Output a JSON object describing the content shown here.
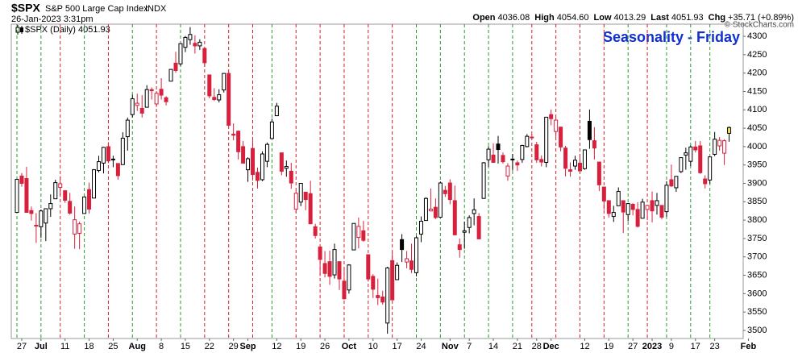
{
  "header": {
    "symbol": "$SPX",
    "name": "S&P 500 Large Cap Index",
    "exchange": "INDX",
    "datetime": "26-Jan-2023 3:31pm",
    "quote": [
      {
        "label": "Open",
        "value": "4036.08"
      },
      {
        "label": "High",
        "value": "4054.60"
      },
      {
        "label": "Low",
        "value": "4013.29"
      },
      {
        "label": "Last",
        "value": "4051.93"
      },
      {
        "label": "Chg",
        "value": "+35.71 (+0.89%)"
      }
    ],
    "copyright": "© StockCharts.com"
  },
  "chart_data": {
    "type": "candlestick",
    "legend": "$SPX (Daily) 4051.93",
    "annotation": "Seasonality - Friday",
    "annotation_color": "#1030d0",
    "up_color": "#000000",
    "down_color": "#d8203c",
    "last_color": "#f2e64a",
    "friday_up_color": "#2a9a2a",
    "friday_down_color": "#d42020",
    "ylim": [
      3478,
      4333
    ],
    "yticks": [
      3500,
      3550,
      3600,
      3650,
      3700,
      3750,
      3800,
      3850,
      3900,
      3950,
      4000,
      4050,
      4100,
      4150,
      4200,
      4250,
      4300
    ],
    "fridays": [
      0,
      5,
      9,
      14,
      19,
      24,
      29,
      34,
      39,
      44,
      49,
      53,
      58,
      63,
      68,
      73,
      78,
      83,
      88,
      93,
      98,
      103,
      107,
      112,
      117,
      122,
      127,
      131,
      135,
      140,
      144
    ],
    "categories": [
      null,
      "27",
      null,
      null,
      null,
      "Jul",
      null,
      null,
      null,
      null,
      "11",
      null,
      null,
      null,
      null,
      "18",
      null,
      null,
      null,
      null,
      "25",
      null,
      null,
      null,
      null,
      "Aug",
      null,
      null,
      null,
      null,
      "8",
      null,
      null,
      null,
      null,
      "15",
      null,
      null,
      null,
      null,
      "22",
      null,
      null,
      null,
      null,
      "29",
      null,
      null,
      "Sep",
      null,
      null,
      null,
      null,
      null,
      "12",
      null,
      null,
      null,
      null,
      "19",
      null,
      null,
      null,
      null,
      "26",
      null,
      null,
      null,
      null,
      "Oct",
      null,
      null,
      null,
      null,
      "10",
      null,
      null,
      null,
      null,
      "17",
      null,
      null,
      null,
      null,
      "24",
      null,
      null,
      null,
      null,
      null,
      "Nov",
      null,
      null,
      null,
      "7",
      null,
      null,
      null,
      null,
      "14",
      null,
      null,
      null,
      null,
      "21",
      null,
      null,
      null,
      "28",
      null,
      null,
      "Dec",
      null,
      null,
      null,
      null,
      null,
      null,
      "12",
      null,
      null,
      null,
      null,
      "19",
      null,
      null,
      null,
      null,
      "27",
      null,
      null,
      null,
      "2023",
      null,
      null,
      null,
      "9",
      null,
      null,
      null,
      null,
      "17",
      null,
      null,
      null,
      "23",
      null,
      null,
      null,
      null,
      null,
      null,
      "Feb"
    ],
    "ohlc": [
      [
        3821,
        3913,
        3821,
        3911
      ],
      [
        3920,
        3928,
        3891,
        3900
      ],
      [
        3913,
        3945,
        3820,
        3821
      ],
      [
        3826,
        3837,
        3799,
        3818
      ],
      [
        3786,
        3819,
        3738,
        3785
      ],
      [
        3782,
        3829,
        3752,
        3825
      ],
      [
        3792,
        3832,
        3743,
        3831
      ],
      [
        3831,
        3870,
        3809,
        3845
      ],
      [
        3858,
        3910,
        3858,
        3902
      ],
      [
        3889,
        3919,
        3867,
        3899
      ],
      [
        3880,
        3880,
        3847,
        3854
      ],
      [
        3851,
        3874,
        3815,
        3819
      ],
      [
        3762,
        3837,
        3722,
        3801
      ],
      [
        3764,
        3796,
        3721,
        3790
      ],
      [
        3818,
        3863,
        3818,
        3863
      ],
      [
        3883,
        3902,
        3818,
        3830
      ],
      [
        3860,
        3939,
        3860,
        3937
      ],
      [
        3935,
        3975,
        3930,
        3959
      ],
      [
        3955,
        3999,
        3927,
        3998
      ],
      [
        4000,
        4012,
        3955,
        3961
      ],
      [
        3965,
        3975,
        3944,
        3966
      ],
      [
        3954,
        3954,
        3910,
        3921
      ],
      [
        3951,
        4039,
        3951,
        4023
      ],
      [
        4027,
        4079,
        3989,
        4072
      ],
      [
        4087,
        4141,
        4079,
        4130
      ],
      [
        4112,
        4144,
        4097,
        4118
      ],
      [
        4104,
        4140,
        4079,
        4091
      ],
      [
        4107,
        4167,
        4107,
        4155
      ],
      [
        4155,
        4161,
        4128,
        4152
      ],
      [
        4116,
        4151,
        4108,
        4145
      ],
      [
        4156,
        4186,
        4128,
        4140
      ],
      [
        4133,
        4137,
        4112,
        4122
      ],
      [
        4178,
        4211,
        4178,
        4210
      ],
      [
        4227,
        4258,
        4201,
        4207
      ],
      [
        4225,
        4280,
        4219,
        4280
      ],
      [
        4270,
        4301,
        4257,
        4297
      ],
      [
        4291,
        4325,
        4277,
        4305
      ],
      [
        4281,
        4303,
        4253,
        4274
      ],
      [
        4274,
        4292,
        4263,
        4284
      ],
      [
        4267,
        4267,
        4218,
        4228
      ],
      [
        4195,
        4196,
        4131,
        4138
      ],
      [
        4134,
        4159,
        4124,
        4128
      ],
      [
        4127,
        4156,
        4120,
        4141
      ],
      [
        4154,
        4200,
        4147,
        4199
      ],
      [
        4199,
        4204,
        4057,
        4058
      ],
      [
        4034,
        4063,
        4017,
        4031
      ],
      [
        4042,
        4044,
        3965,
        3986
      ],
      [
        4000,
        4015,
        3954,
        3955
      ],
      [
        3937,
        3971,
        3904,
        3967
      ],
      [
        3995,
        4018,
        3907,
        3924
      ],
      [
        3930,
        3943,
        3886,
        3908
      ],
      [
        3910,
        3987,
        3906,
        3980
      ],
      [
        3960,
        4011,
        3944,
        4006
      ],
      [
        4022,
        4076,
        4022,
        4067
      ],
      [
        4084,
        4119,
        4083,
        4110
      ],
      [
        3983,
        3983,
        3922,
        3933
      ],
      [
        3941,
        3962,
        3918,
        3946
      ],
      [
        3933,
        3956,
        3885,
        3901
      ],
      [
        3830,
        3880,
        3820,
        3873
      ],
      [
        3849,
        3900,
        3838,
        3900
      ],
      [
        3876,
        3876,
        3827,
        3856
      ],
      [
        3872,
        3907,
        3789,
        3790
      ],
      [
        3782,
        3790,
        3750,
        3758
      ],
      [
        3727,
        3727,
        3648,
        3693
      ],
      [
        3682,
        3716,
        3644,
        3655
      ],
      [
        3687,
        3717,
        3624,
        3647
      ],
      [
        3651,
        3736,
        3641,
        3720
      ],
      [
        3687,
        3687,
        3610,
        3640
      ],
      [
        3634,
        3672,
        3584,
        3586
      ],
      [
        3610,
        3680,
        3600,
        3678
      ],
      [
        3719,
        3791,
        3719,
        3791
      ],
      [
        3753,
        3807,
        3723,
        3783
      ],
      [
        3771,
        3798,
        3741,
        3745
      ],
      [
        3706,
        3706,
        3633,
        3640
      ],
      [
        3647,
        3653,
        3588,
        3612
      ],
      [
        3595,
        3641,
        3569,
        3589
      ],
      [
        3591,
        3608,
        3570,
        3577
      ],
      [
        3520,
        3673,
        3491,
        3670
      ],
      [
        3690,
        3713,
        3582,
        3583
      ],
      [
        3638,
        3685,
        3638,
        3677
      ],
      [
        3747,
        3762,
        3686,
        3720
      ],
      [
        3686,
        3716,
        3669,
        3695
      ],
      [
        3689,
        3736,
        3656,
        3666
      ],
      [
        3657,
        3757,
        3647,
        3752
      ],
      [
        3762,
        3810,
        3740,
        3797
      ],
      [
        3799,
        3862,
        3799,
        3859
      ],
      [
        3825,
        3886,
        3824,
        3830
      ],
      [
        3835,
        3859,
        3803,
        3807
      ],
      [
        3808,
        3905,
        3808,
        3901
      ],
      [
        3881,
        3893,
        3863,
        3872
      ],
      [
        3901,
        3911,
        3843,
        3856
      ],
      [
        3853,
        3894,
        3759,
        3760
      ],
      [
        3733,
        3750,
        3698,
        3720
      ],
      [
        3767,
        3796,
        3722,
        3771
      ],
      [
        3780,
        3813,
        3764,
        3807
      ],
      [
        3818,
        3859,
        3786,
        3828
      ],
      [
        3810,
        3819,
        3748,
        3749
      ],
      [
        3859,
        3958,
        3859,
        3956
      ],
      [
        3964,
        4001,
        3945,
        3993
      ],
      [
        3977,
        4009,
        3957,
        3957
      ],
      [
        4007,
        4029,
        3954,
        3992
      ],
      [
        3976,
        3984,
        3954,
        3959
      ],
      [
        3920,
        3955,
        3907,
        3947
      ],
      [
        3966,
        3980,
        3935,
        3965
      ],
      [
        3956,
        3962,
        3934,
        3950
      ],
      [
        3965,
        4005,
        3956,
        4003
      ],
      [
        4000,
        4034,
        3998,
        4028
      ],
      [
        4024,
        4034,
        4020,
        4026
      ],
      [
        4005,
        4013,
        3956,
        3964
      ],
      [
        3965,
        3976,
        3946,
        3958
      ],
      [
        3957,
        4080,
        3944,
        4080
      ],
      [
        4087,
        4101,
        4058,
        4076
      ],
      [
        4041,
        4080,
        4026,
        4072
      ],
      [
        4053,
        4053,
        3987,
        3999
      ],
      [
        3996,
        4002,
        3919,
        3941
      ],
      [
        3937,
        3957,
        3918,
        3933
      ],
      [
        3947,
        3975,
        3937,
        3963
      ],
      [
        3955,
        3977,
        3933,
        3934
      ],
      [
        3940,
        3991,
        3937,
        3991
      ],
      [
        4069,
        4101,
        3994,
        4019
      ],
      [
        4016,
        4053,
        3965,
        3996
      ],
      [
        3958,
        3958,
        3879,
        3896
      ],
      [
        3890,
        3890,
        3828,
        3852
      ],
      [
        3853,
        3854,
        3807,
        3818
      ],
      [
        3810,
        3839,
        3795,
        3821
      ],
      [
        3839,
        3889,
        3839,
        3878
      ],
      [
        3853,
        3853,
        3765,
        3822
      ],
      [
        3815,
        3846,
        3797,
        3845
      ],
      [
        3843,
        3846,
        3813,
        3829
      ],
      [
        3829,
        3849,
        3780,
        3783
      ],
      [
        3805,
        3858,
        3805,
        3849
      ],
      [
        3829,
        3840,
        3800,
        3840
      ],
      [
        3853,
        3878,
        3794,
        3825
      ],
      [
        3840,
        3874,
        3815,
        3853
      ],
      [
        3840,
        3840,
        3802,
        3808
      ],
      [
        3823,
        3906,
        3809,
        3895
      ],
      [
        3910,
        3951,
        3890,
        3893
      ],
      [
        3888,
        3920,
        3877,
        3919
      ],
      [
        3932,
        3970,
        3928,
        3970
      ],
      [
        3977,
        3997,
        3937,
        3983
      ],
      [
        3960,
        4003,
        3947,
        3999
      ],
      [
        3999,
        4015,
        3984,
        3991
      ],
      [
        4002,
        4015,
        3926,
        3929
      ],
      [
        3912,
        3922,
        3886,
        3899
      ],
      [
        3909,
        3973,
        3899,
        3972
      ],
      [
        3979,
        4040,
        3974,
        4020
      ],
      [
        4002,
        4026,
        3989,
        4017
      ],
      [
        3982,
        4020,
        3950,
        4016
      ],
      [
        4036.08,
        4054.6,
        4013.29,
        4051.93
      ],
      null,
      null,
      null,
      null
    ]
  }
}
